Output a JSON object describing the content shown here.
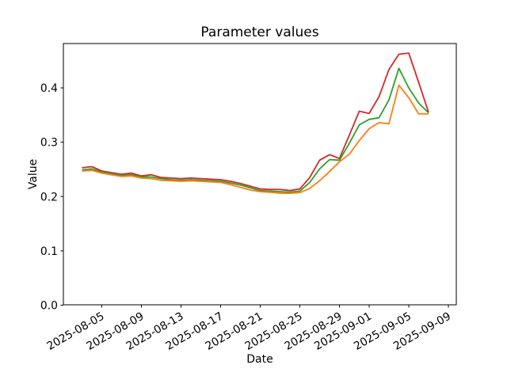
{
  "chart_data": {
    "type": "line",
    "title": "Parameter values",
    "xlabel": "Date",
    "ylabel": "Value",
    "grid": false,
    "legend": "none",
    "ylim": [
      0,
      0.482
    ],
    "xlim": [
      "2025-08-01",
      "2025-09-10"
    ],
    "x": [
      "2025-08-03",
      "2025-08-04",
      "2025-08-05",
      "2025-08-06",
      "2025-08-07",
      "2025-08-08",
      "2025-08-09",
      "2025-08-10",
      "2025-08-11",
      "2025-08-12",
      "2025-08-13",
      "2025-08-14",
      "2025-08-15",
      "2025-08-16",
      "2025-08-17",
      "2025-08-18",
      "2025-08-19",
      "2025-08-20",
      "2025-08-21",
      "2025-08-22",
      "2025-08-23",
      "2025-08-24",
      "2025-08-25",
      "2025-08-26",
      "2025-08-27",
      "2025-08-28",
      "2025-08-29",
      "2025-08-30",
      "2025-08-31",
      "2025-09-01",
      "2025-09-02",
      "2025-09-03",
      "2025-09-04",
      "2025-09-05",
      "2025-09-06",
      "2025-09-07"
    ],
    "series": [
      {
        "name": "red",
        "color": "#d62728",
        "values": [
          0.253,
          0.255,
          0.247,
          0.244,
          0.241,
          0.243,
          0.238,
          0.24,
          0.235,
          0.234,
          0.233,
          0.234,
          0.233,
          0.232,
          0.231,
          0.228,
          0.224,
          0.219,
          0.214,
          0.213,
          0.213,
          0.211,
          0.214,
          0.235,
          0.267,
          0.277,
          0.27,
          0.313,
          0.357,
          0.353,
          0.384,
          0.434,
          0.462,
          0.464,
          0.41,
          0.355
        ]
      },
      {
        "name": "green",
        "color": "#2ca02c",
        "values": [
          0.249,
          0.251,
          0.245,
          0.242,
          0.239,
          0.24,
          0.236,
          0.236,
          0.233,
          0.231,
          0.23,
          0.231,
          0.23,
          0.229,
          0.228,
          0.225,
          0.221,
          0.216,
          0.211,
          0.21,
          0.209,
          0.208,
          0.21,
          0.226,
          0.251,
          0.268,
          0.267,
          0.298,
          0.332,
          0.342,
          0.345,
          0.378,
          0.436,
          0.4,
          0.372,
          0.354
        ]
      },
      {
        "name": "orange",
        "color": "#ff7f0e",
        "values": [
          0.247,
          0.248,
          0.243,
          0.24,
          0.237,
          0.238,
          0.234,
          0.233,
          0.23,
          0.229,
          0.228,
          0.229,
          0.228,
          0.227,
          0.226,
          0.222,
          0.217,
          0.212,
          0.209,
          0.208,
          0.206,
          0.206,
          0.207,
          0.215,
          0.229,
          0.246,
          0.264,
          0.278,
          0.303,
          0.325,
          0.336,
          0.334,
          0.405,
          0.382,
          0.352,
          0.352
        ]
      }
    ],
    "x_ticks": [
      "2025-08-05",
      "2025-08-09",
      "2025-08-13",
      "2025-08-17",
      "2025-08-21",
      "2025-08-25",
      "2025-08-29",
      "2025-09-01",
      "2025-09-05",
      "2025-09-09"
    ],
    "y_ticks": [
      "0.0",
      "0.1",
      "0.2",
      "0.3",
      "0.4"
    ],
    "y_tick_values": [
      0.0,
      0.1,
      0.2,
      0.3,
      0.4
    ]
  }
}
